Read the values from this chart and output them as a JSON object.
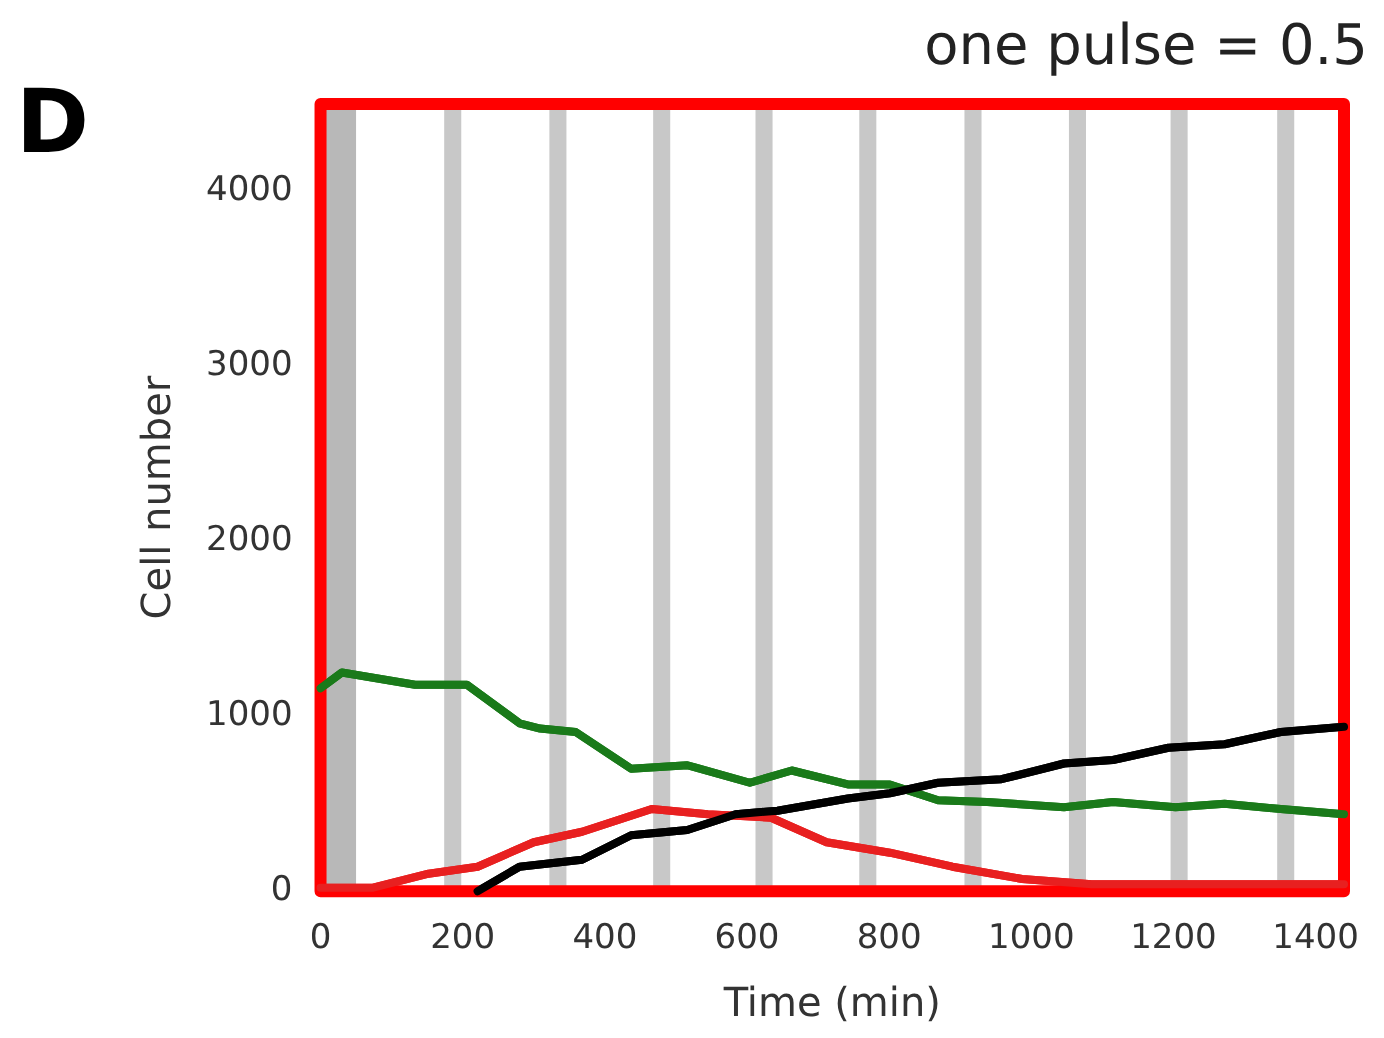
{
  "chart_data": {
    "type": "line",
    "title": "one pulse = 0.5",
    "xlabel": "Time (min)",
    "ylabel": "Cell number",
    "annotations": [
      "D"
    ],
    "xlim": [
      0,
      1440
    ],
    "ylim": [
      0,
      4500
    ],
    "xticks": [
      0,
      200,
      400,
      600,
      800,
      1000,
      1200,
      1400
    ],
    "yticks": [
      0,
      1000,
      2000,
      3000,
      4000
    ],
    "grid": false,
    "legend": false,
    "marker": "none",
    "line_style": "solid",
    "bands": [
      {
        "axis": "x",
        "from": 0,
        "to": 50,
        "color": "#b8b8b8"
      },
      {
        "axis": "x",
        "from": 174,
        "to": 198,
        "color": "#c8c8c8"
      },
      {
        "axis": "x",
        "from": 322,
        "to": 346,
        "color": "#c8c8c8"
      },
      {
        "axis": "x",
        "from": 468,
        "to": 492,
        "color": "#c8c8c8"
      },
      {
        "axis": "x",
        "from": 612,
        "to": 636,
        "color": "#c8c8c8"
      },
      {
        "axis": "x",
        "from": 758,
        "to": 782,
        "color": "#c8c8c8"
      },
      {
        "axis": "x",
        "from": 906,
        "to": 930,
        "color": "#c8c8c8"
      },
      {
        "axis": "x",
        "from": 1053,
        "to": 1077,
        "color": "#c8c8c8"
      },
      {
        "axis": "x",
        "from": 1196,
        "to": 1220,
        "color": "#c8c8c8"
      },
      {
        "axis": "x",
        "from": 1346,
        "to": 1370,
        "color": "#c8c8c8"
      }
    ],
    "series": [
      {
        "color": "#1a7a1a",
        "x": [
          0,
          30,
          133,
          206,
          280,
          309,
          359,
          437,
          516,
          604,
          663,
          742,
          801,
          869,
          938,
          1046,
          1115,
          1203,
          1272,
          1351,
          1440
        ],
        "values": [
          1160,
          1250,
          1180,
          1180,
          960,
          930,
          910,
          700,
          720,
          620,
          690,
          610,
          610,
          520,
          510,
          480,
          510,
          480,
          500,
          470,
          440
        ]
      },
      {
        "color": "#e82020",
        "x": [
          0,
          74,
          152,
          221,
          300,
          368,
          466,
          545,
          634,
          712,
          801,
          889,
          987,
          1085,
          1233,
          1440
        ],
        "values": [
          20,
          20,
          100,
          140,
          280,
          340,
          470,
          440,
          420,
          280,
          220,
          140,
          70,
          40,
          40,
          40
        ]
      },
      {
        "color": "#000000",
        "x": [
          221,
          280,
          368,
          437,
          516,
          584,
          643,
          742,
          801,
          869,
          958,
          1046,
          1115,
          1193,
          1272,
          1351,
          1440
        ],
        "values": [
          0,
          140,
          180,
          320,
          350,
          440,
          460,
          530,
          560,
          620,
          640,
          730,
          750,
          820,
          840,
          910,
          940
        ]
      }
    ]
  }
}
